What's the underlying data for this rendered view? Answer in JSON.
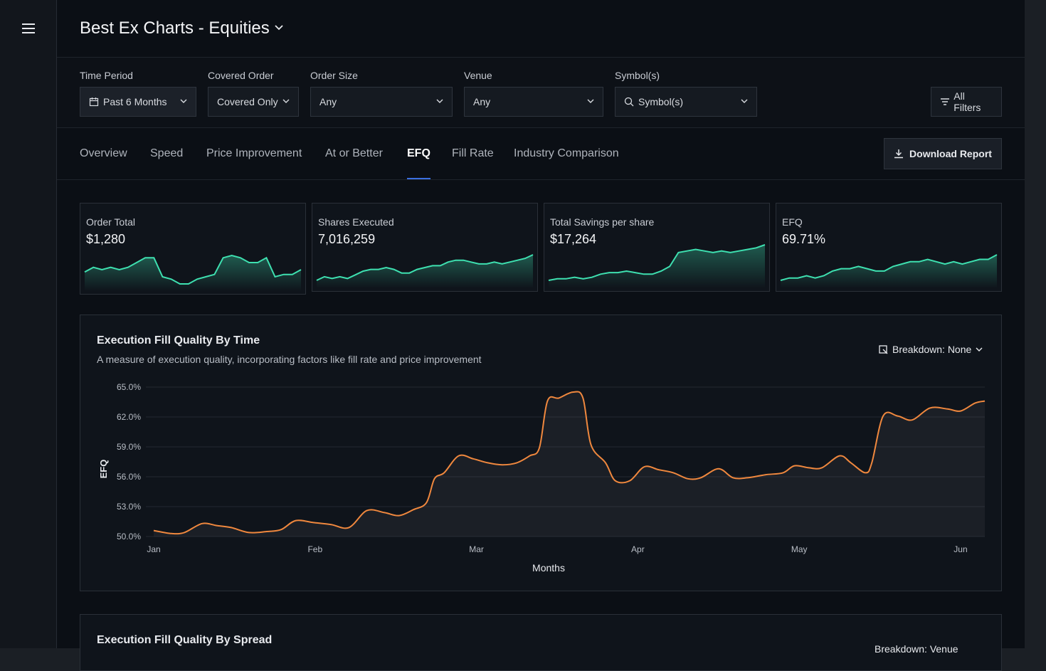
{
  "header": {
    "title": "Best Ex Charts - Equities"
  },
  "filters": [
    {
      "label": "Time Period",
      "value": "Past 6 Months"
    },
    {
      "label": "Covered Order",
      "value": "Covered Only"
    },
    {
      "label": "Order Size",
      "value": "Any"
    },
    {
      "label": "Venue",
      "value": "Any"
    },
    {
      "label": "Symbol(s)",
      "value": "Symbol(s)"
    }
  ],
  "all_filters": "All Filters",
  "tabs": [
    "Overview",
    "Speed",
    "Price Improvement",
    "At or Better",
    "EFQ",
    "Fill Rate",
    "Industry Comparison"
  ],
  "active_tab": 4,
  "download": "Download Report",
  "spark_color": "#3ee0b0",
  "cards": [
    {
      "label": "Order Total",
      "value": "$1,280",
      "values": [
        5,
        7,
        6,
        7,
        6,
        7,
        9,
        11,
        11,
        3,
        2,
        0,
        0,
        2,
        3,
        4,
        11,
        12,
        11,
        9,
        9,
        11,
        3,
        4,
        4,
        6
      ]
    },
    {
      "label": "Shares Executed",
      "value": "7,016,259",
      "values": [
        1,
        3,
        2,
        3,
        2,
        4,
        6,
        7,
        7,
        8,
        7,
        5,
        5,
        7,
        8,
        9,
        9,
        11,
        12,
        12,
        11,
        10,
        10,
        11,
        10,
        11,
        12,
        13,
        15
      ]
    },
    {
      "label": "Total Savings per share",
      "value": "$17,264",
      "values": [
        1,
        2,
        2,
        3,
        2,
        3,
        5,
        6,
        6,
        7,
        6,
        5,
        5,
        7,
        10,
        19,
        20,
        21,
        20,
        19,
        20,
        19,
        20,
        21,
        22,
        24
      ]
    },
    {
      "label": "EFQ",
      "value": "69.71%",
      "values": [
        1,
        2,
        2,
        3,
        2,
        3,
        5,
        6,
        6,
        7,
        6,
        5,
        5,
        7,
        8,
        9,
        9,
        10,
        9,
        8,
        9,
        8,
        9,
        10,
        10,
        12
      ]
    }
  ],
  "chart_data": {
    "type": "line",
    "title": "Execution Fill Quality By Time",
    "subtitle": "A measure of execution quality, incorporating factors like fill rate and price improvement",
    "breakdown": "Breakdown: None",
    "y_label": "EFQ",
    "x_label": "Months",
    "color": "#f0883e",
    "x": [
      0,
      0.11,
      0.19,
      0.3,
      0.39,
      0.48,
      0.59,
      0.7,
      0.79,
      0.88,
      0.99,
      1.1,
      1.21,
      1.32,
      1.43,
      1.52,
      1.61,
      1.69,
      1.74,
      1.8,
      1.89,
      1.98,
      2.07,
      2.16,
      2.25,
      2.33,
      2.39,
      2.44,
      2.51,
      2.6,
      2.66,
      2.71,
      2.8,
      2.86,
      2.95,
      3.04,
      3.13,
      3.22,
      3.31,
      3.39,
      3.5,
      3.59,
      3.68,
      3.79,
      3.9,
      3.97,
      4.06,
      4.14,
      4.25,
      4.32,
      4.41,
      4.45,
      4.52,
      4.61,
      4.7,
      4.81,
      4.92,
      5.0,
      5.09,
      5.15
    ],
    "values": [
      50.6,
      50.3,
      50.4,
      51.3,
      51.1,
      50.9,
      50.4,
      50.5,
      50.7,
      51.6,
      51.4,
      51.2,
      50.9,
      52.6,
      52.4,
      52.1,
      52.7,
      53.4,
      55.8,
      56.4,
      58.1,
      57.8,
      57.4,
      57.2,
      57.4,
      58.1,
      58.9,
      63.6,
      63.9,
      64.5,
      63.9,
      59.2,
      57.4,
      55.6,
      55.6,
      57.0,
      56.7,
      56.4,
      55.8,
      55.9,
      56.8,
      55.9,
      55.9,
      56.2,
      56.4,
      57.1,
      56.9,
      56.9,
      58.1,
      57.4,
      56.4,
      57.4,
      62.1,
      62.1,
      61.7,
      62.9,
      62.8,
      62.6,
      63.4,
      63.6
    ],
    "xlim": [
      0,
      5.15
    ],
    "xticks": [
      {
        "value": 0,
        "label": "Jan"
      },
      {
        "value": 1,
        "label": "Feb"
      },
      {
        "value": 2,
        "label": "Mar"
      },
      {
        "value": 3,
        "label": "Apr"
      },
      {
        "value": 4,
        "label": "May"
      },
      {
        "value": 5,
        "label": "Jun"
      }
    ],
    "ylim": [
      50,
      65
    ],
    "yticks": [
      {
        "value": 50,
        "label": "50.0%"
      },
      {
        "value": 53,
        "label": "53.0%"
      },
      {
        "value": 56,
        "label": "56.0%"
      },
      {
        "value": 59,
        "label": "59.0%"
      },
      {
        "value": 62,
        "label": "62.0%"
      },
      {
        "value": 65,
        "label": "65.0%"
      }
    ],
    "grid": true
  },
  "second_chart": {
    "title": "Execution Fill Quality By Spread",
    "breakdown": "Breakdown: Venue"
  }
}
